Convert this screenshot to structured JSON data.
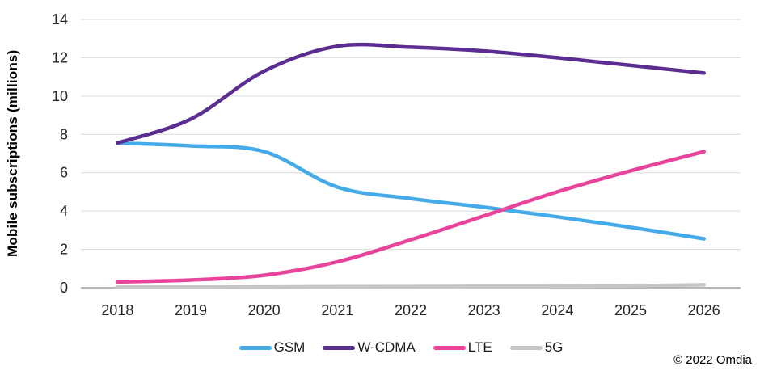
{
  "chart": {
    "y_axis_title": "Mobile subscriptions (millions)",
    "copyright": "© 2022 Omdia"
  },
  "chart_data": {
    "type": "line",
    "title": "",
    "xlabel": "",
    "ylabel": "Mobile subscriptions (millions)",
    "categories": [
      "2018",
      "2019",
      "2020",
      "2021",
      "2022",
      "2023",
      "2024",
      "2025",
      "2026"
    ],
    "series": [
      {
        "name": "GSM",
        "color": "#44ABE8",
        "values": [
          7.55,
          7.4,
          7.1,
          5.25,
          4.65,
          4.2,
          3.7,
          3.15,
          2.55
        ]
      },
      {
        "name": "W-CDMA",
        "color": "#5B2D90",
        "values": [
          7.55,
          8.8,
          11.3,
          12.6,
          12.55,
          12.35,
          12.0,
          11.6,
          11.2
        ]
      },
      {
        "name": "LTE",
        "color": "#E9449B",
        "values": [
          0.3,
          0.4,
          0.65,
          1.35,
          2.5,
          3.75,
          5.0,
          6.1,
          7.1
        ]
      },
      {
        "name": "5G",
        "color": "#C6C6C6",
        "values": [
          0.03,
          0.03,
          0.04,
          0.05,
          0.06,
          0.07,
          0.08,
          0.1,
          0.15
        ]
      }
    ],
    "ylim": [
      0,
      14
    ],
    "ytick_step": 2,
    "grid": true,
    "smoothed": true,
    "legend_position": "bottom"
  },
  "colors": {
    "gridline": "#D9D9D9",
    "axis_line": "#A0A0A0",
    "tick_label": "#262626"
  }
}
